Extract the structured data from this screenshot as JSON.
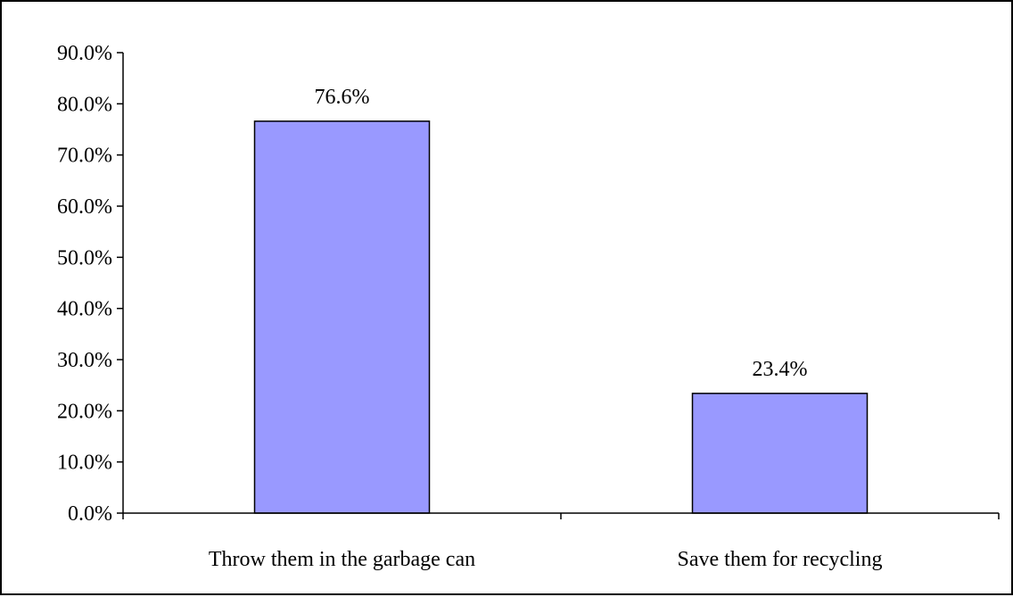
{
  "chart_data": {
    "type": "bar",
    "title": "",
    "xlabel": "",
    "ylabel": "",
    "categories": [
      "Throw them in the garbage can",
      "Save them for recycling"
    ],
    "values": [
      76.6,
      23.4
    ],
    "data_labels": [
      "76.6%",
      "23.4%"
    ],
    "ylim": [
      0,
      90
    ],
    "yticks": [
      0,
      10,
      20,
      30,
      40,
      50,
      60,
      70,
      80,
      90
    ],
    "ytick_labels": [
      "0.0%",
      "10.0%",
      "20.0%",
      "30.0%",
      "40.0%",
      "50.0%",
      "60.0%",
      "70.0%",
      "80.0%",
      "90.0%"
    ],
    "grid": false,
    "legend": false,
    "bar_color": "#9999ff",
    "bar_edge_color": "#000000"
  }
}
